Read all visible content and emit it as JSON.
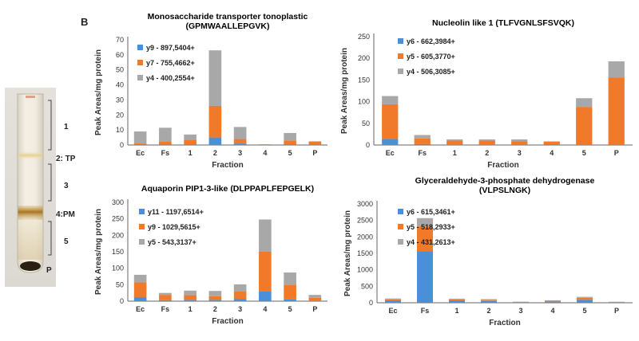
{
  "panel_letter": "B",
  "tube": {
    "labels": [
      "1",
      "2: TP",
      "3",
      "4:PM",
      "5",
      "P"
    ]
  },
  "colors": {
    "blue": "#4a90d9",
    "orange": "#f07a2a",
    "gray": "#a8a8a8",
    "axis": "#666666",
    "grid": "#cccccc"
  },
  "chart_data": [
    {
      "type": "bar",
      "stacked": true,
      "title": "Monosaccharide transporter tonoplastic",
      "subtitle": "(GPMWAALLEPGVK)",
      "xlabel": "Fraction",
      "ylabel": "Peak Areas/mg protein",
      "categories": [
        "Ec",
        "Fs",
        "1",
        "2",
        "3",
        "4",
        "5",
        "P"
      ],
      "ylim": [
        0,
        70
      ],
      "yticks": [
        0,
        10,
        20,
        30,
        40,
        50,
        60,
        70
      ],
      "series": [
        {
          "name": "y9 - 897,5404+",
          "color": "#4a90d9",
          "values": [
            0.5,
            0.5,
            0.5,
            5,
            1,
            0,
            0.5,
            0.3
          ]
        },
        {
          "name": "y7 - 755,4662+",
          "color": "#f07a2a",
          "values": [
            0.5,
            2,
            3,
            21,
            3,
            0.2,
            2.5,
            2
          ]
        },
        {
          "name": "y4 - 400,2554+",
          "color": "#a8a8a8",
          "values": [
            8,
            9,
            3.5,
            37,
            8,
            0.3,
            5,
            0.2
          ]
        }
      ]
    },
    {
      "type": "bar",
      "stacked": true,
      "title": "Nucleolin like 1 (TLFVGNLSFSVQK)",
      "subtitle": "",
      "xlabel": "Fraction",
      "ylabel": "Peak Areas/mg protein",
      "categories": [
        "Ec",
        "Fs",
        "1",
        "2",
        "3",
        "4",
        "5",
        "P"
      ],
      "ylim": [
        0,
        250
      ],
      "yticks": [
        0,
        50,
        100,
        150,
        200,
        250
      ],
      "series": [
        {
          "name": "y6 - 662,3984+",
          "color": "#4a90d9",
          "values": [
            14,
            2,
            1,
            1,
            1,
            0.5,
            1,
            1
          ]
        },
        {
          "name": "y5 - 605,3770+",
          "color": "#f07a2a",
          "values": [
            80,
            13,
            9,
            9,
            8,
            7,
            87,
            155
          ]
        },
        {
          "name": "y4 - 506,3085+",
          "color": "#a8a8a8",
          "values": [
            19,
            8,
            3,
            3,
            4,
            1,
            20,
            37
          ]
        }
      ]
    },
    {
      "type": "bar",
      "stacked": true,
      "title": "Aquaporin PIP1-3-like (DLPPAPLFEPGELK)",
      "subtitle": "",
      "xlabel": "Fraction",
      "ylabel": "Peak Areas/mg protein",
      "categories": [
        "Ec",
        "Fs",
        "1",
        "2",
        "3",
        "4",
        "5",
        "P"
      ],
      "ylim": [
        0,
        300
      ],
      "yticks": [
        0,
        50,
        100,
        150,
        200,
        250,
        300
      ],
      "series": [
        {
          "name": "y11 - 1197,6514+",
          "color": "#4a90d9",
          "values": [
            12,
            3,
            4,
            4,
            6,
            30,
            5,
            2
          ]
        },
        {
          "name": "y9 - 1029,5615+",
          "color": "#f07a2a",
          "values": [
            45,
            16,
            14,
            11,
            23,
            120,
            45,
            8
          ]
        },
        {
          "name": "y5 - 543,3137+",
          "color": "#a8a8a8",
          "values": [
            23,
            6,
            14,
            16,
            22,
            98,
            37,
            9
          ]
        }
      ]
    },
    {
      "type": "bar",
      "stacked": true,
      "title": "Glyceraldehyde-3-phosphate dehydrogenase",
      "subtitle": "(VLPSLNGK)",
      "xlabel": "Fraction",
      "ylabel": "Peak Areas/mg protein",
      "categories": [
        "Ec",
        "Fs",
        "1",
        "2",
        "3",
        "4",
        "5",
        "P"
      ],
      "ylim": [
        0,
        3000
      ],
      "yticks": [
        0,
        500,
        1000,
        1500,
        2000,
        2500,
        3000
      ],
      "series": [
        {
          "name": "y6 - 615,3461+",
          "color": "#4a90d9",
          "values": [
            60,
            1570,
            60,
            55,
            15,
            40,
            90,
            15
          ]
        },
        {
          "name": "y5 - 518,2933+",
          "color": "#f07a2a",
          "values": [
            40,
            750,
            40,
            35,
            10,
            20,
            60,
            10
          ]
        },
        {
          "name": "y4 - 431,2613+",
          "color": "#a8a8a8",
          "values": [
            30,
            250,
            25,
            20,
            8,
            15,
            30,
            5
          ]
        }
      ]
    }
  ]
}
